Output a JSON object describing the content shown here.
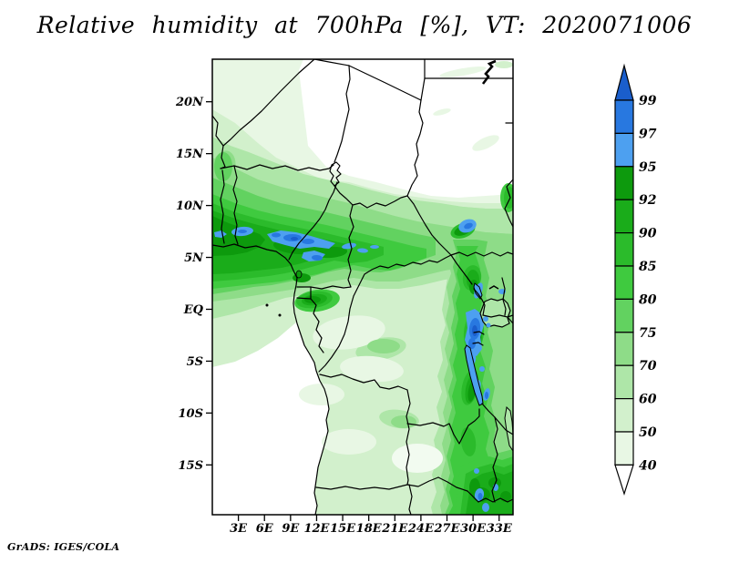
{
  "title": "Relative humidity at 700hPa [%], VT: 2020071006",
  "credit": "GrADS: IGES/COLA",
  "chart_data": {
    "type": "filled-contour-map",
    "variable": "Relative humidity",
    "pressure_level": "700hPa",
    "units": "%",
    "valid_time": "2020071006",
    "region": "Central Africa",
    "levels": [
      40,
      50,
      60,
      70,
      75,
      80,
      85,
      90,
      92,
      95,
      97,
      99
    ],
    "band_colors": [
      "#e8f7e4",
      "#d2f0cc",
      "#aee6a8",
      "#8edc88",
      "#62d260",
      "#3fca3f",
      "#2bbb2b",
      "#1aac1a",
      "#0d9a0d",
      "#4da0f0",
      "#2878e0"
    ],
    "above_top_color": "#1a5ecc",
    "below_bottom_color": "#ffffff",
    "legend_position": "right",
    "lon_range": [
      0,
      34.6
    ],
    "lat_range": [
      -19.8,
      24.1
    ],
    "lat_ticks": [
      {
        "label": "20N",
        "value": 20
      },
      {
        "label": "15N",
        "value": 15
      },
      {
        "label": "10N",
        "value": 10
      },
      {
        "label": "5N",
        "value": 5
      },
      {
        "label": "EQ",
        "value": 0
      },
      {
        "label": "5S",
        "value": -5
      },
      {
        "label": "10S",
        "value": -10
      },
      {
        "label": "15S",
        "value": -15
      }
    ],
    "lon_ticks": [
      {
        "label": "3E",
        "value": 3
      },
      {
        "label": "6E",
        "value": 6
      },
      {
        "label": "9E",
        "value": 9
      },
      {
        "label": "12E",
        "value": 12
      },
      {
        "label": "15E",
        "value": 15
      },
      {
        "label": "18E",
        "value": 18
      },
      {
        "label": "21E",
        "value": 21
      },
      {
        "label": "24E",
        "value": 24
      },
      {
        "label": "27E",
        "value": 27
      },
      {
        "label": "30E",
        "value": 30
      },
      {
        "label": "33E",
        "value": 33
      }
    ],
    "notable_maxima": "RH > 95% band along 5N-7N from 0E to 20E, along the Albertine rift 29E-31E, and SE corner 29E-33E",
    "notable_minima": "RH < 40% over NE desert (15N-24N east of 12E) and SE Atlantic ocean south of 2S"
  }
}
